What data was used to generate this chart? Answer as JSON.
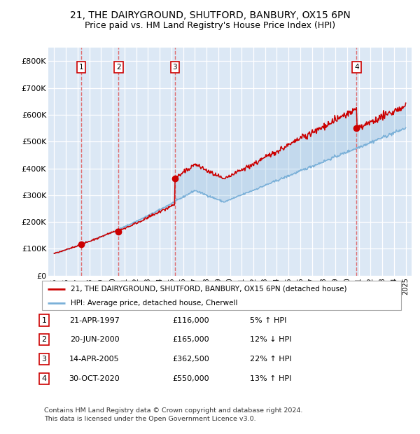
{
  "title": "21, THE DAIRYGROUND, SHUTFORD, BANBURY, OX15 6PN",
  "subtitle": "Price paid vs. HM Land Registry's House Price Index (HPI)",
  "title_fontsize": 10,
  "subtitle_fontsize": 9,
  "background_color": "#dce8f5",
  "plot_background": "#dce8f5",
  "hpi_line_color": "#7ab0d8",
  "price_line_color": "#cc0000",
  "marker_color": "#cc0000",
  "dashed_line_color": "#e06060",
  "ylim": [
    0,
    850000
  ],
  "yticks": [
    0,
    100000,
    200000,
    300000,
    400000,
    500000,
    600000,
    700000,
    800000
  ],
  "ytick_labels": [
    "£0",
    "£100K",
    "£200K",
    "£300K",
    "£400K",
    "£500K",
    "£600K",
    "£700K",
    "£800K"
  ],
  "xlim_start": 1994.5,
  "xlim_end": 2025.5,
  "transactions": [
    {
      "num": 1,
      "date": "21-APR-1997",
      "year": 1997.3,
      "price": 116000,
      "pct": "5%",
      "dir": "↑"
    },
    {
      "num": 2,
      "date": "20-JUN-2000",
      "year": 2000.5,
      "price": 165000,
      "pct": "12%",
      "dir": "↓"
    },
    {
      "num": 3,
      "date": "14-APR-2005",
      "year": 2005.3,
      "price": 362500,
      "pct": "22%",
      "dir": "↑"
    },
    {
      "num": 4,
      "date": "30-OCT-2020",
      "year": 2020.8,
      "price": 550000,
      "pct": "13%",
      "dir": "↑"
    }
  ],
  "legend_label_price": "21, THE DAIRYGROUND, SHUTFORD, BANBURY, OX15 6PN (detached house)",
  "legend_label_hpi": "HPI: Average price, detached house, Cherwell",
  "footnote": "Contains HM Land Registry data © Crown copyright and database right 2024.\nThis data is licensed under the Open Government Licence v3.0.",
  "table_rows": [
    [
      "1",
      "21-APR-1997",
      "£116,000",
      "5% ↑ HPI"
    ],
    [
      "2",
      "20-JUN-2000",
      "£165,000",
      "12% ↓ HPI"
    ],
    [
      "3",
      "14-APR-2005",
      "£362,500",
      "22% ↑ HPI"
    ],
    [
      "4",
      "30-OCT-2020",
      "£550,000",
      "13% ↑ HPI"
    ]
  ]
}
